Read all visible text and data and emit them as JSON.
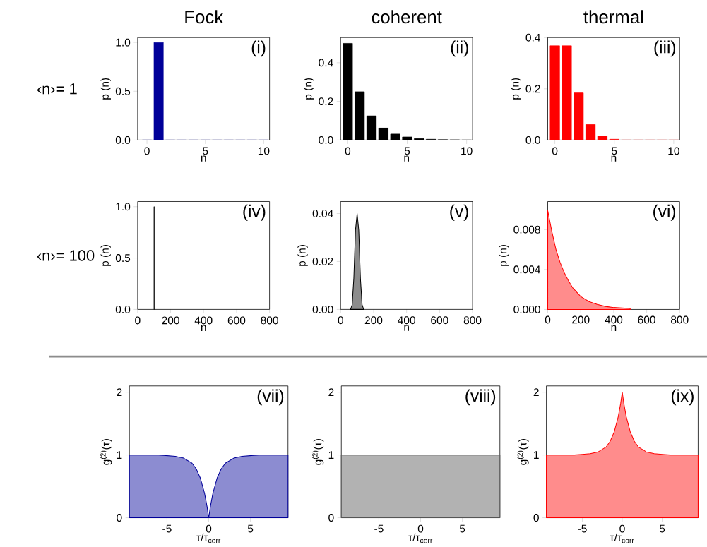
{
  "chart_data": [
    {
      "type": "bar",
      "title": "Fock",
      "xlabel": "n",
      "ylabel": "p (n)",
      "annotations": [
        "(i)",
        "‹n›= 1"
      ],
      "x": [
        0,
        1,
        2,
        3,
        4,
        5,
        6,
        7,
        8,
        9,
        10
      ],
      "values": [
        0,
        1.0,
        0,
        0,
        0,
        0,
        0,
        0,
        0,
        0,
        0
      ],
      "color": "#000099",
      "xlim": [
        -0.8,
        10.5
      ],
      "ylim": [
        0,
        1.05
      ],
      "xticks": [
        0,
        5,
        10
      ],
      "yticks": [
        {
          "value": 0,
          "label": "0.0"
        },
        {
          "value": 0.5,
          "label": "0.5"
        },
        {
          "value": 1,
          "label": "1.0"
        }
      ]
    },
    {
      "type": "bar",
      "title": "coherent",
      "xlabel": "n",
      "ylabel": "p (n)",
      "annotations": [
        "(ii)"
      ],
      "x": [
        0,
        1,
        2,
        3,
        4,
        5,
        6,
        7,
        8,
        9,
        10
      ],
      "values": [
        0.5,
        0.25,
        0.125,
        0.062,
        0.031,
        0.016,
        0.008,
        0.004,
        0.002,
        0.001,
        0
      ],
      "color": "#000000",
      "xlim": [
        -0.6,
        10.5
      ],
      "ylim": [
        0,
        0.53
      ],
      "xticks": [
        0,
        5,
        10
      ],
      "yticks": [
        {
          "value": 0,
          "label": "0.0"
        },
        {
          "value": 0.2,
          "label": "0.2"
        },
        {
          "value": 0.4,
          "label": "0.4"
        }
      ]
    },
    {
      "type": "bar",
      "title": "thermal",
      "xlabel": "n",
      "ylabel": "p (n)",
      "annotations": [
        "(iii)"
      ],
      "x": [
        0,
        1,
        2,
        3,
        4,
        5,
        6,
        7,
        8,
        9,
        10
      ],
      "values": [
        0.368,
        0.368,
        0.184,
        0.061,
        0.015,
        0.003,
        0,
        0,
        0,
        0,
        0
      ],
      "color": "#ff0000",
      "xlim": [
        -0.6,
        10.5
      ],
      "ylim": [
        0,
        0.4
      ],
      "xticks": [
        0,
        5,
        10
      ],
      "yticks": [
        {
          "value": 0,
          "label": "0.0"
        },
        {
          "value": 0.2,
          "label": "0.2"
        },
        {
          "value": 0.4,
          "label": "0.4"
        }
      ]
    },
    {
      "type": "bar",
      "xlabel": "n",
      "ylabel": "p (n)",
      "annotations": [
        "(iv)",
        "‹n›= 100"
      ],
      "x": [
        100
      ],
      "values": [
        1.0
      ],
      "color": "#000000",
      "xlim": [
        0,
        800
      ],
      "ylim": [
        0,
        1.05
      ],
      "xticks": [
        0,
        200,
        400,
        600,
        800
      ],
      "yticks": [
        {
          "value": 0,
          "label": "0.0"
        },
        {
          "value": 0.5,
          "label": "0.5"
        },
        {
          "value": 1,
          "label": "1.0"
        }
      ]
    },
    {
      "type": "area",
      "xlabel": "n",
      "ylabel": "p (n)",
      "annotations": [
        "(v)"
      ],
      "x": [
        60,
        70,
        80,
        90,
        100,
        110,
        120,
        130,
        140
      ],
      "values": [
        0,
        0.002,
        0.013,
        0.033,
        0.04,
        0.033,
        0.013,
        0.002,
        0
      ],
      "color": "#000000",
      "xlim": [
        0,
        800
      ],
      "ylim": [
        0,
        0.045
      ],
      "xticks": [
        0,
        200,
        400,
        600,
        800
      ],
      "yticks": [
        {
          "value": 0,
          "label": "0.00"
        },
        {
          "value": 0.02,
          "label": "0.02"
        },
        {
          "value": 0.04,
          "label": "0.04"
        }
      ]
    },
    {
      "type": "area",
      "xlabel": "n",
      "ylabel": "p (n)",
      "annotations": [
        "(vi)"
      ],
      "x": [
        0,
        25,
        50,
        75,
        100,
        125,
        150,
        200,
        250,
        300,
        350,
        400,
        500
      ],
      "values": [
        0.0099,
        0.0078,
        0.006,
        0.0047,
        0.0037,
        0.0029,
        0.0022,
        0.0013,
        0.0008,
        0.0005,
        0.0003,
        0.0002,
        0.0001
      ],
      "color": "#ff0000",
      "xlim": [
        0,
        800
      ],
      "ylim": [
        0,
        0.0108
      ],
      "xticks": [
        0,
        200,
        400,
        600,
        800
      ],
      "yticks": [
        {
          "value": 0,
          "label": "0.000"
        },
        {
          "value": 0.004,
          "label": "0.004"
        },
        {
          "value": 0.008,
          "label": "0.008"
        }
      ]
    },
    {
      "type": "area",
      "xlabel": "τ/τ$_{corr}$",
      "ylabel": "g$^{(2)}$(τ)",
      "annotations": [
        "(vii)"
      ],
      "x": [
        -9.5,
        -8,
        -6,
        -5,
        -4,
        -3,
        -2,
        -1.5,
        -1,
        -0.5,
        -0.2,
        0,
        0.2,
        0.5,
        1,
        1.5,
        2,
        3,
        4,
        5,
        6,
        8,
        9.5
      ],
      "values": [
        1,
        1,
        1,
        0.99,
        0.98,
        0.95,
        0.87,
        0.78,
        0.63,
        0.39,
        0.18,
        0,
        0.18,
        0.39,
        0.63,
        0.78,
        0.87,
        0.95,
        0.98,
        0.99,
        1,
        1,
        1
      ],
      "color": "#000099",
      "xlim": [
        -9.5,
        9.5
      ],
      "ylim": [
        0,
        2.1
      ],
      "xticks": [
        -5,
        0,
        5
      ],
      "yticks": [
        0,
        1,
        2
      ]
    },
    {
      "type": "area",
      "xlabel": "τ/τ$_{corr}$",
      "ylabel": "g$^{(2)}$(τ)",
      "annotations": [
        "(viii)"
      ],
      "x": [
        -9.5,
        9.5
      ],
      "values": [
        1,
        1
      ],
      "color": "#555555",
      "xlim": [
        -9.5,
        9.5
      ],
      "ylim": [
        0,
        2.1
      ],
      "xticks": [
        -5,
        0,
        5
      ],
      "yticks": [
        0,
        1,
        2
      ]
    },
    {
      "type": "area",
      "xlabel": "τ/τ$_{corr}$",
      "ylabel": "g$^{(2)}$(τ)",
      "annotations": [
        "(ix)"
      ],
      "x": [
        -9.5,
        -8,
        -6,
        -5,
        -4,
        -3,
        -2,
        -1.5,
        -1,
        -0.5,
        -0.2,
        0,
        0.2,
        0.5,
        1,
        1.5,
        2,
        3,
        4,
        5,
        6,
        8,
        9.5
      ],
      "values": [
        1,
        1,
        1,
        1.01,
        1.02,
        1.05,
        1.13,
        1.22,
        1.37,
        1.61,
        1.82,
        2,
        1.82,
        1.61,
        1.37,
        1.22,
        1.13,
        1.05,
        1.02,
        1.01,
        1,
        1,
        1
      ],
      "color": "#ff0000",
      "xlim": [
        -9.5,
        9.5
      ],
      "ylim": [
        0,
        2.1
      ],
      "xticks": [
        -5,
        0,
        5
      ],
      "yticks": [
        0,
        1,
        2
      ]
    }
  ]
}
